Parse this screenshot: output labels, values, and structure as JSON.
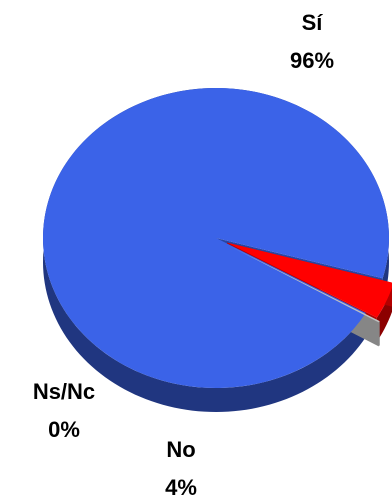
{
  "chart_data": {
    "type": "pie",
    "style": "3d-exploded",
    "slices": [
      {
        "label": "Sí",
        "value": 96,
        "value_label": "96%",
        "color": "#3b63e8"
      },
      {
        "label": "No",
        "value": 4,
        "value_label": "4%",
        "color": "#ff0000"
      },
      {
        "label": "Ns/Nc",
        "value": 0,
        "value_label": "0%",
        "color": "#c0c0c0"
      }
    ],
    "legend": "none"
  }
}
